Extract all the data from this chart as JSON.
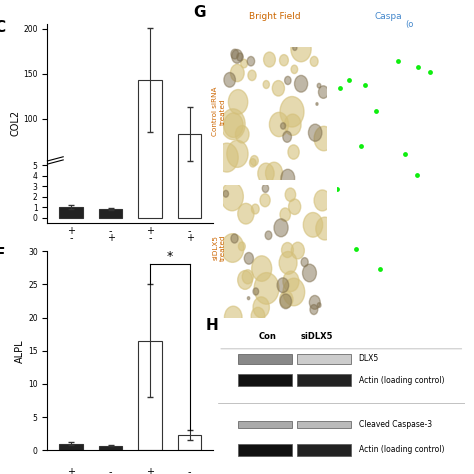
{
  "panel_C": {
    "label": "C",
    "ylabel": "COL2",
    "bar_values": [
      1.0,
      0.8,
      143,
      83
    ],
    "bar_errors": [
      0.15,
      0.1,
      58,
      30
    ],
    "bar_colors": [
      "#222222",
      "#222222",
      "#ffffff",
      "#ffffff"
    ],
    "x_row1": [
      "+",
      "-",
      "+",
      "-"
    ],
    "x_row2": [
      "-",
      "+",
      "-",
      "+"
    ]
  },
  "panel_F": {
    "label": "F",
    "ylabel": "ALPL",
    "bar_values": [
      1.0,
      0.7,
      16.5,
      2.3
    ],
    "bar_errors": [
      0.2,
      0.1,
      8.5,
      0.8
    ],
    "bar_colors": [
      "#222222",
      "#222222",
      "#ffffff",
      "#ffffff"
    ],
    "x_row1": [
      "+",
      "-",
      "+",
      "-"
    ],
    "x_row2": [
      "-",
      "+",
      "-",
      "+"
    ],
    "ylim": [
      0,
      30
    ],
    "yticks": [
      0,
      5,
      10,
      15,
      20,
      25,
      30
    ]
  },
  "bg_color": "#ffffff",
  "text_color": "#000000"
}
